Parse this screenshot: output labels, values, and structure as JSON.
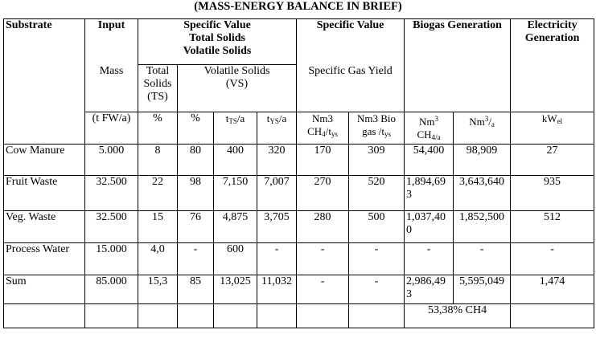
{
  "title": "(MASS-ENERGY BALANCE IN BRIEF)",
  "headers": {
    "substrate": "Substrate",
    "input": "Input",
    "spec_value_1": "Specific Value",
    "total_solids": "Total Solids",
    "volatile_solids": "Volatile Solids",
    "spec_value_2": "Specific Value",
    "biogas_generation": "Biogas Generation",
    "electricity_generation": "Electricity Generation",
    "mass": "Mass",
    "total_solids_ts": "Total Solids (TS)",
    "volatile_solids_vs": "Volatile Solids (VS)",
    "specific_gas_yield": "Specific Gas Yield"
  },
  "units": {
    "mass": "(t FW/a)",
    "ts_pct": "%",
    "vs_pct": "%",
    "tts": "tTS/a",
    "tys": "tYS/a",
    "nm3_ch4": "Nm3 CH4/tys",
    "nm3_biogas": "Nm3 Bio gas /tys",
    "nm3_ch4a": "Nm3 CH4/a",
    "nm3a": "Nm3/a",
    "kwel": "kWel"
  },
  "rows": [
    {
      "substrate": "Cow Manure",
      "mass": "5.000",
      "ts": "8",
      "vs": "80",
      "tts": "400",
      "tys": "320",
      "ch4": "170",
      "biogas": "309",
      "ch4a": "54,400",
      "nm3a": "98,909",
      "kw": "27"
    },
    {
      "substrate": "Fruit Waste",
      "mass": "32.500",
      "ts": "22",
      "vs": "98",
      "tts": "7,150",
      "tys": "7,007",
      "ch4": "270",
      "biogas": "520",
      "ch4a": "1,894,69 3",
      "nm3a": "3,643,640",
      "kw": "935"
    },
    {
      "substrate": "Veg. Waste",
      "mass": "32.500",
      "ts": "15",
      "vs": "76",
      "tts": "4,875",
      "tys": "3,705",
      "ch4": "280",
      "biogas": "500",
      "ch4a": "1,037,40 0",
      "nm3a": "1,852,500",
      "kw": "512"
    },
    {
      "substrate": "Process Water",
      "mass": "15.000",
      "ts": "4,0",
      "vs": "-",
      "tts": "600",
      "tys": "-",
      "ch4": "-",
      "biogas": "-",
      "ch4a": "-",
      "nm3a": "-",
      "kw": "-"
    },
    {
      "substrate": "Sum",
      "mass": "85.000",
      "ts": "15,3",
      "vs": "85",
      "tts": "13,025",
      "tys": "11,032",
      "ch4": "-",
      "biogas": "-",
      "ch4a": "2,986,49 3",
      "nm3a": "5,595,049",
      "kw": "1,474"
    }
  ],
  "footer_note": "53,38% CH4"
}
